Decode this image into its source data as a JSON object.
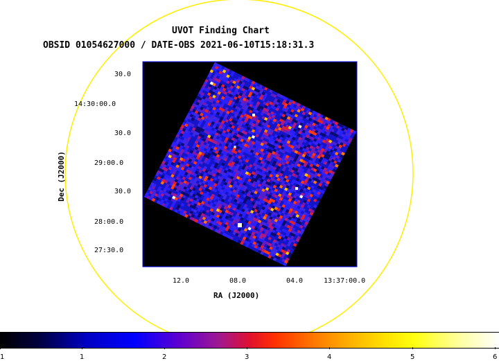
{
  "title": "UVOT Finding Chart",
  "subtitle": "OBSID 01054627000 / DATE-OBS 2021-06-10T15:18:31.3",
  "x_axis_label": "RA (J2000)",
  "y_axis_label": "Dec (J2000)",
  "ra_ticks": [
    "12.0",
    "08.0",
    "04.0",
    "13:37:00.0"
  ],
  "dec_ticks": [
    "30.0",
    "14:30:00.0",
    "30.0",
    "29:00.0",
    "30.0",
    "28:00.0",
    "27:30.0"
  ],
  "colorbar": {
    "ticks": [
      "1",
      "1",
      "2",
      "3",
      "4",
      "5",
      "6"
    ],
    "colormap": "heat"
  },
  "colors": {
    "circle": "#ffee00",
    "frame": "#0000ff",
    "background": "#000000"
  }
}
